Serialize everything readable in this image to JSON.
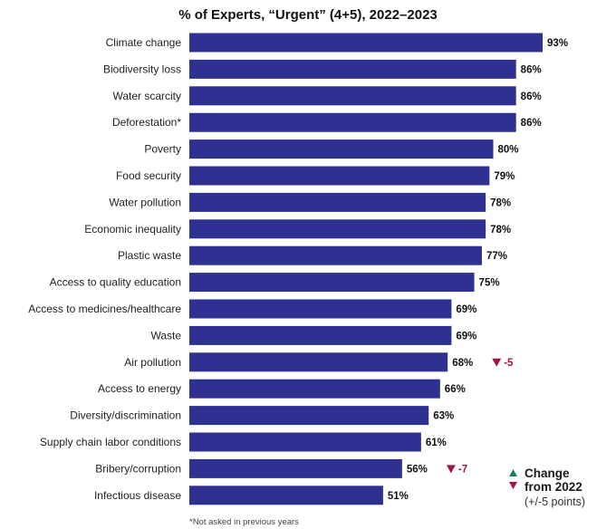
{
  "chart_data": {
    "type": "bar",
    "orientation": "horizontal",
    "title": "% of Experts, “Urgent” (4+5), 2022–2023",
    "categories": [
      "Climate change",
      "Biodiversity loss",
      "Water scarcity",
      "Deforestation*",
      "Poverty",
      "Food security",
      "Water pollution",
      "Economic inequality",
      "Plastic waste",
      "Access to quality education",
      "Access to medicines/healthcare",
      "Waste",
      "Air pollution",
      "Access to energy",
      "Diversity/discrimination",
      "Supply chain labor conditions",
      "Bribery/corruption",
      "Infectious disease"
    ],
    "values": [
      93,
      86,
      86,
      86,
      80,
      79,
      78,
      78,
      77,
      75,
      69,
      69,
      68,
      66,
      63,
      61,
      56,
      51
    ],
    "value_labels": [
      "93%",
      "86%",
      "86%",
      "86%",
      "80%",
      "79%",
      "78%",
      "78%",
      "77%",
      "75%",
      "69%",
      "69%",
      "68%",
      "66%",
      "63%",
      "61%",
      "56%",
      "51%"
    ],
    "changes": [
      {
        "category": "Air pollution",
        "direction": "down",
        "label": "-5"
      },
      {
        "category": "Bribery/corruption",
        "direction": "down",
        "label": "-7"
      }
    ],
    "legend": {
      "line1": "Change",
      "line2": "from 2022",
      "line3": "(+/-5 points)",
      "placement": "bottom-right"
    },
    "footnote": "*Not asked in previous years",
    "xlim": [
      0,
      100
    ],
    "grid": false,
    "colors": {
      "bar": "#2e3192",
      "up": "#1b7f5c",
      "down": "#a3144a"
    }
  }
}
